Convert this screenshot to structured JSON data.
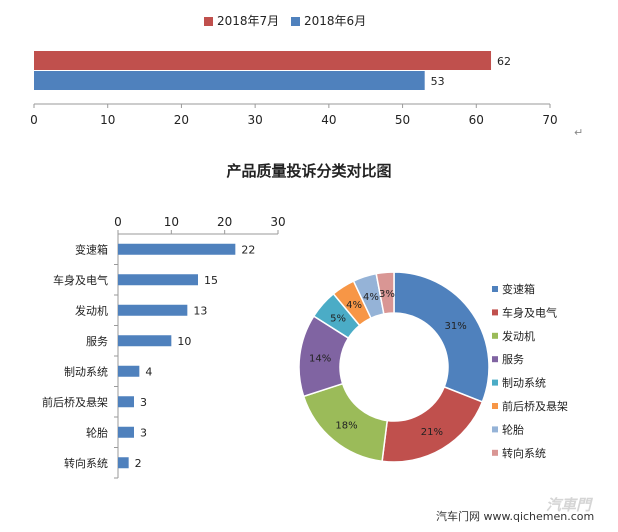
{
  "top_legend": [
    {
      "label": "2018年7月",
      "color": "#c0504d"
    },
    {
      "label": "2018年6月",
      "color": "#4f81bd"
    }
  ],
  "main_title": "产品质量投诉分类对比图",
  "return_mark": "↵",
  "watermark_text": "汽车门网 www.qichemen.com",
  "watermark_logo": "汽車門",
  "chart_data": [
    {
      "type": "bar",
      "orientation": "horizontal",
      "categories": [
        ""
      ],
      "series": [
        {
          "name": "2018年7月",
          "values": [
            62
          ],
          "color": "#c0504d"
        },
        {
          "name": "2018年6月",
          "values": [
            53
          ],
          "color": "#4f81bd"
        }
      ],
      "xticks": [
        0,
        10,
        20,
        30,
        40,
        50,
        60,
        70
      ],
      "xlim": [
        0,
        70
      ],
      "legend": "top"
    },
    {
      "type": "bar",
      "orientation": "horizontal",
      "categories": [
        "变速箱",
        "车身及电气",
        "发动机",
        "服务",
        "制动系统",
        "前后桥及悬架",
        "轮胎",
        "转向系统"
      ],
      "values": [
        22,
        15,
        13,
        10,
        4,
        3,
        3,
        2
      ],
      "color": "#4f81bd",
      "xticks": [
        0,
        10,
        20,
        30
      ],
      "xlim": [
        0,
        30
      ],
      "xaxis_position": "top"
    },
    {
      "type": "pie",
      "donut": true,
      "labels": [
        "变速箱",
        "车身及电气",
        "发动机",
        "服务",
        "制动系统",
        "前后桥及悬架",
        "轮胎",
        "转向系统"
      ],
      "values": [
        31,
        21,
        18,
        14,
        5,
        4,
        4,
        3
      ],
      "value_labels": [
        "31%",
        "21%",
        "18%",
        "14%",
        "5%",
        "4%",
        "4%",
        "3%"
      ],
      "colors": [
        "#4f81bd",
        "#c0504d",
        "#9bbb59",
        "#8064a2",
        "#4bacc6",
        "#f79646",
        "#95b3d7",
        "#d99694"
      ],
      "legend": "right"
    }
  ]
}
